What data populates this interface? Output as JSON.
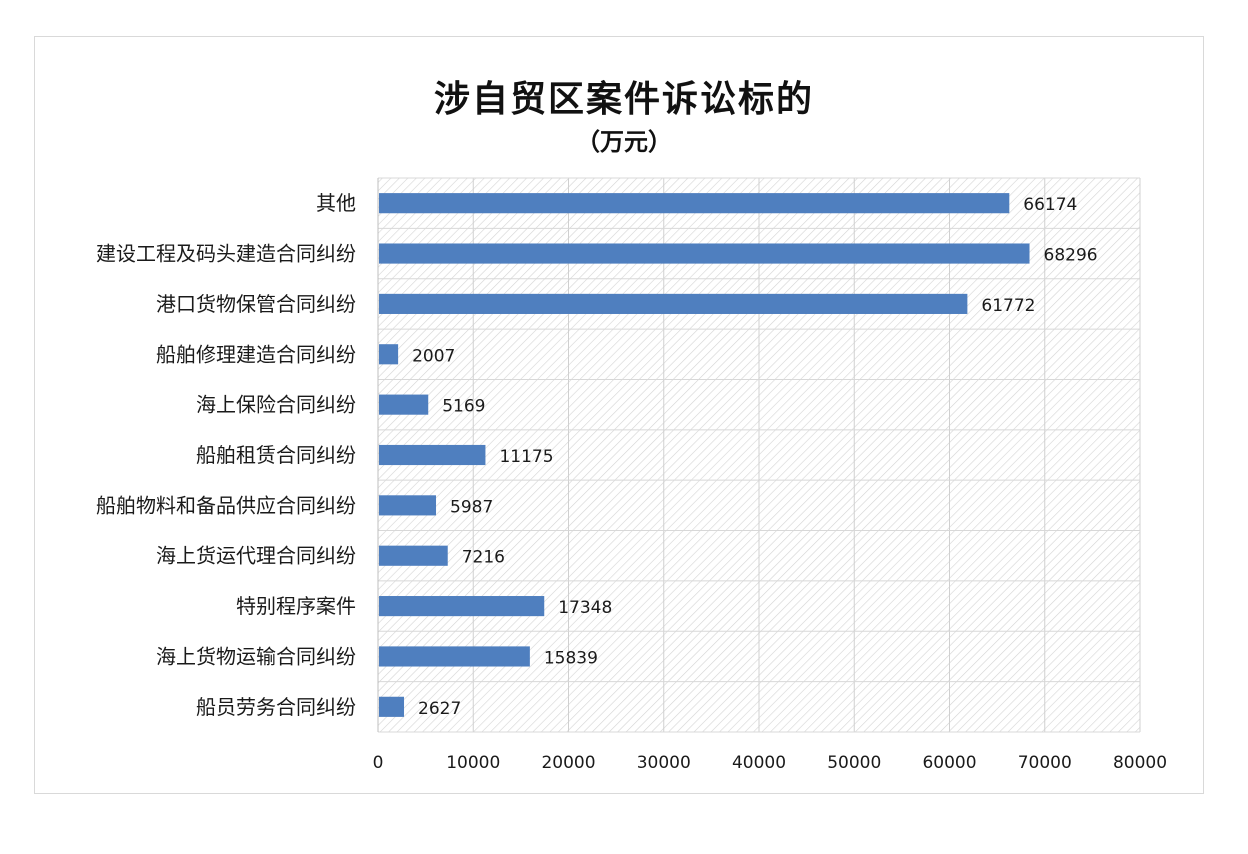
{
  "chart_data": {
    "type": "bar",
    "orientation": "horizontal",
    "title": "涉自贸区案件诉讼标的",
    "subtitle": "（万元）",
    "categories": [
      "其他",
      "建设工程及码头建造合同纠纷",
      "港口货物保管合同纠纷",
      "船舶修理建造合同纠纷",
      "海上保险合同纠纷",
      "船舶租赁合同纠纷",
      "船舶物料和备品供应合同纠纷",
      "海上货运代理合同纠纷",
      "特别程序案件",
      "海上货物运输合同纠纷",
      "船员劳务合同纠纷"
    ],
    "values": [
      66174,
      68296,
      61772,
      2007,
      5169,
      11175,
      5987,
      7216,
      17348,
      15839,
      2627
    ],
    "data_labels": [
      "66174",
      "68296",
      "61772",
      "2007",
      "5169",
      "11175",
      "5987",
      "7216",
      "17348",
      "15839",
      "2627"
    ],
    "xlim": [
      0,
      80000
    ],
    "xticks": [
      "0",
      "10000",
      "20000",
      "30000",
      "40000",
      "50000",
      "60000",
      "70000",
      "80000"
    ],
    "xlabel": "",
    "ylabel": "",
    "grid": true,
    "legend": "none",
    "bar_color": "#4f7fbf"
  }
}
